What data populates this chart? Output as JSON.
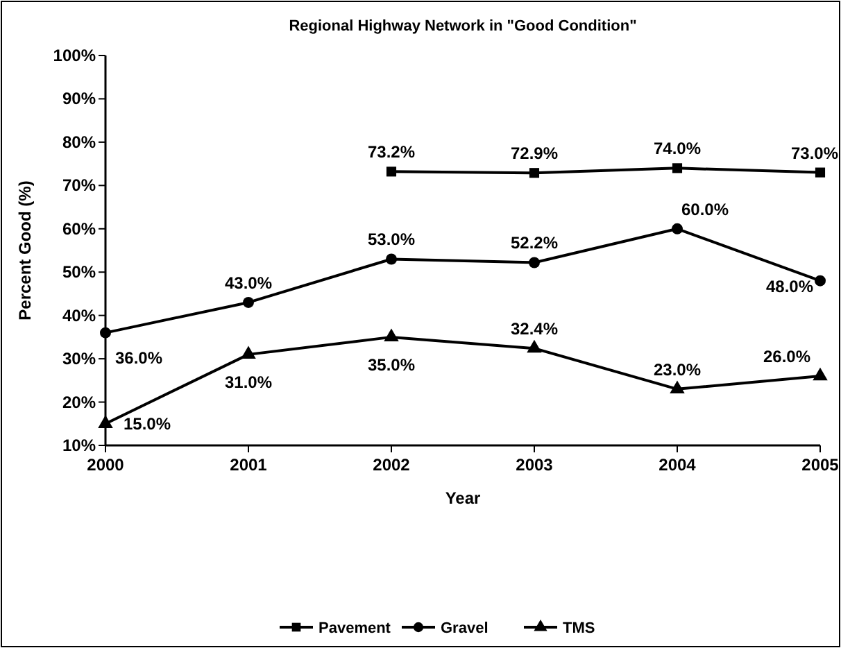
{
  "chart_data": {
    "type": "line",
    "title": "Regional Highway Network in \"Good Condition\"",
    "xlabel": "Year",
    "ylabel": "Percent Good (%)",
    "x": [
      2000,
      2001,
      2002,
      2003,
      2004,
      2005
    ],
    "xlim": [
      2000,
      2005
    ],
    "xticks": [
      2000,
      2001,
      2002,
      2003,
      2004,
      2005
    ],
    "ylim": [
      10,
      100
    ],
    "yticks": [
      {
        "value": 10,
        "label": "10%"
      },
      {
        "value": 20,
        "label": "20%"
      },
      {
        "value": 30,
        "label": "30%"
      },
      {
        "value": 40,
        "label": "40%"
      },
      {
        "value": 50,
        "label": "50%"
      },
      {
        "value": 60,
        "label": "60%"
      },
      {
        "value": 70,
        "label": "70%"
      },
      {
        "value": 80,
        "label": "80%"
      },
      {
        "value": 90,
        "label": "90%"
      },
      {
        "value": 100,
        "label": "100%"
      }
    ],
    "grid": false,
    "legend": "bottom",
    "line_style": "solid",
    "series": [
      {
        "name": "Pavement",
        "color": "#000000",
        "marker": "square",
        "values": [
          null,
          null,
          73.2,
          72.9,
          74.0,
          73.0
        ],
        "value_labels": [
          null,
          null,
          "73.2%",
          "72.9%",
          "74.0%",
          "73.0%"
        ]
      },
      {
        "name": "Gravel",
        "color": "#000000",
        "marker": "circle",
        "values": [
          36.0,
          43.0,
          53.0,
          52.2,
          60.0,
          48.0
        ],
        "value_labels": [
          "36.0%",
          "43.0%",
          "53.0%",
          "52.2%",
          "60.0%",
          "48.0%"
        ]
      },
      {
        "name": "TMS",
        "color": "#000000",
        "marker": "triangle",
        "values": [
          15.0,
          31.0,
          35.0,
          32.4,
          23.0,
          26.0
        ],
        "value_labels": [
          "15.0%",
          "31.0%",
          "35.0%",
          "32.4%",
          "23.0%",
          "26.0%"
        ]
      }
    ]
  }
}
